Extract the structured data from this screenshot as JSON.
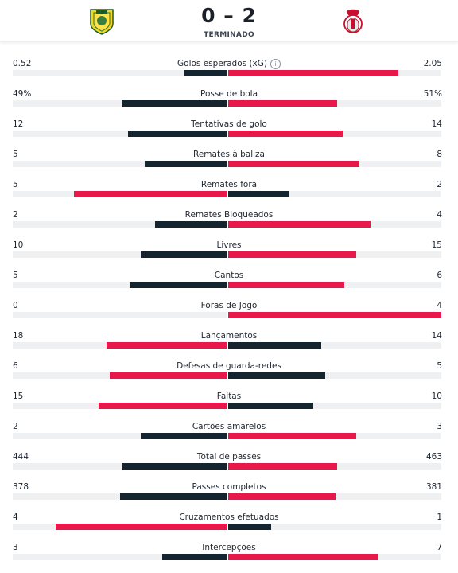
{
  "match": {
    "score": "0 – 2",
    "status": "TERMINADO",
    "home_crest_icon": "fc-arouca-crest-icon",
    "away_crest_icon": "sl-benfica-crest-icon"
  },
  "colors": {
    "dark": "#142530",
    "red": "#e8194a",
    "track": "#eef0f2"
  },
  "stats": [
    {
      "label": "Golos esperados (xG)",
      "home": "0.52",
      "away": "2.05",
      "info_icon": true,
      "home_value": 0.52,
      "away_value": 2.05,
      "home_color": "dark",
      "away_color": "red"
    },
    {
      "label": "Posse de bola",
      "home": "49%",
      "away": "51%",
      "home_value": 49,
      "away_value": 51,
      "home_color": "dark",
      "away_color": "red"
    },
    {
      "label": "Tentativas de golo",
      "home": "12",
      "away": "14",
      "home_value": 12,
      "away_value": 14,
      "home_color": "dark",
      "away_color": "red"
    },
    {
      "label": "Remates à baliza",
      "home": "5",
      "away": "8",
      "home_value": 5,
      "away_value": 8,
      "home_color": "dark",
      "away_color": "red"
    },
    {
      "label": "Remates fora",
      "home": "5",
      "away": "2",
      "home_value": 5,
      "away_value": 2,
      "home_color": "red",
      "away_color": "dark"
    },
    {
      "label": "Remates Bloqueados",
      "home": "2",
      "away": "4",
      "home_value": 2,
      "away_value": 4,
      "home_color": "dark",
      "away_color": "red"
    },
    {
      "label": "Livres",
      "home": "10",
      "away": "15",
      "home_value": 10,
      "away_value": 15,
      "home_color": "dark",
      "away_color": "red"
    },
    {
      "label": "Cantos",
      "home": "5",
      "away": "6",
      "home_value": 5,
      "away_value": 6,
      "home_color": "dark",
      "away_color": "red"
    },
    {
      "label": "Foras de Jogo",
      "home": "0",
      "away": "4",
      "home_value": 0,
      "away_value": 4,
      "home_color": "dark",
      "away_color": "red"
    },
    {
      "label": "Lançamentos",
      "home": "18",
      "away": "14",
      "home_value": 18,
      "away_value": 14,
      "home_color": "red",
      "away_color": "dark"
    },
    {
      "label": "Defesas de guarda-redes",
      "home": "6",
      "away": "5",
      "home_value": 6,
      "away_value": 5,
      "home_color": "red",
      "away_color": "dark"
    },
    {
      "label": "Faltas",
      "home": "15",
      "away": "10",
      "home_value": 15,
      "away_value": 10,
      "home_color": "red",
      "away_color": "dark"
    },
    {
      "label": "Cartões amarelos",
      "home": "2",
      "away": "3",
      "home_value": 2,
      "away_value": 3,
      "home_color": "dark",
      "away_color": "red"
    },
    {
      "label": "Total de passes",
      "home": "444",
      "away": "463",
      "home_value": 444,
      "away_value": 463,
      "home_color": "dark",
      "away_color": "red"
    },
    {
      "label": "Passes completos",
      "home": "378",
      "away": "381",
      "home_value": 378,
      "away_value": 381,
      "home_color": "dark",
      "away_color": "red"
    },
    {
      "label": "Cruzamentos efetuados",
      "home": "4",
      "away": "1",
      "home_value": 4,
      "away_value": 1,
      "home_color": "red",
      "away_color": "dark"
    },
    {
      "label": "Intercepções",
      "home": "3",
      "away": "7",
      "home_value": 3,
      "away_value": 7,
      "home_color": "dark",
      "away_color": "red"
    }
  ]
}
